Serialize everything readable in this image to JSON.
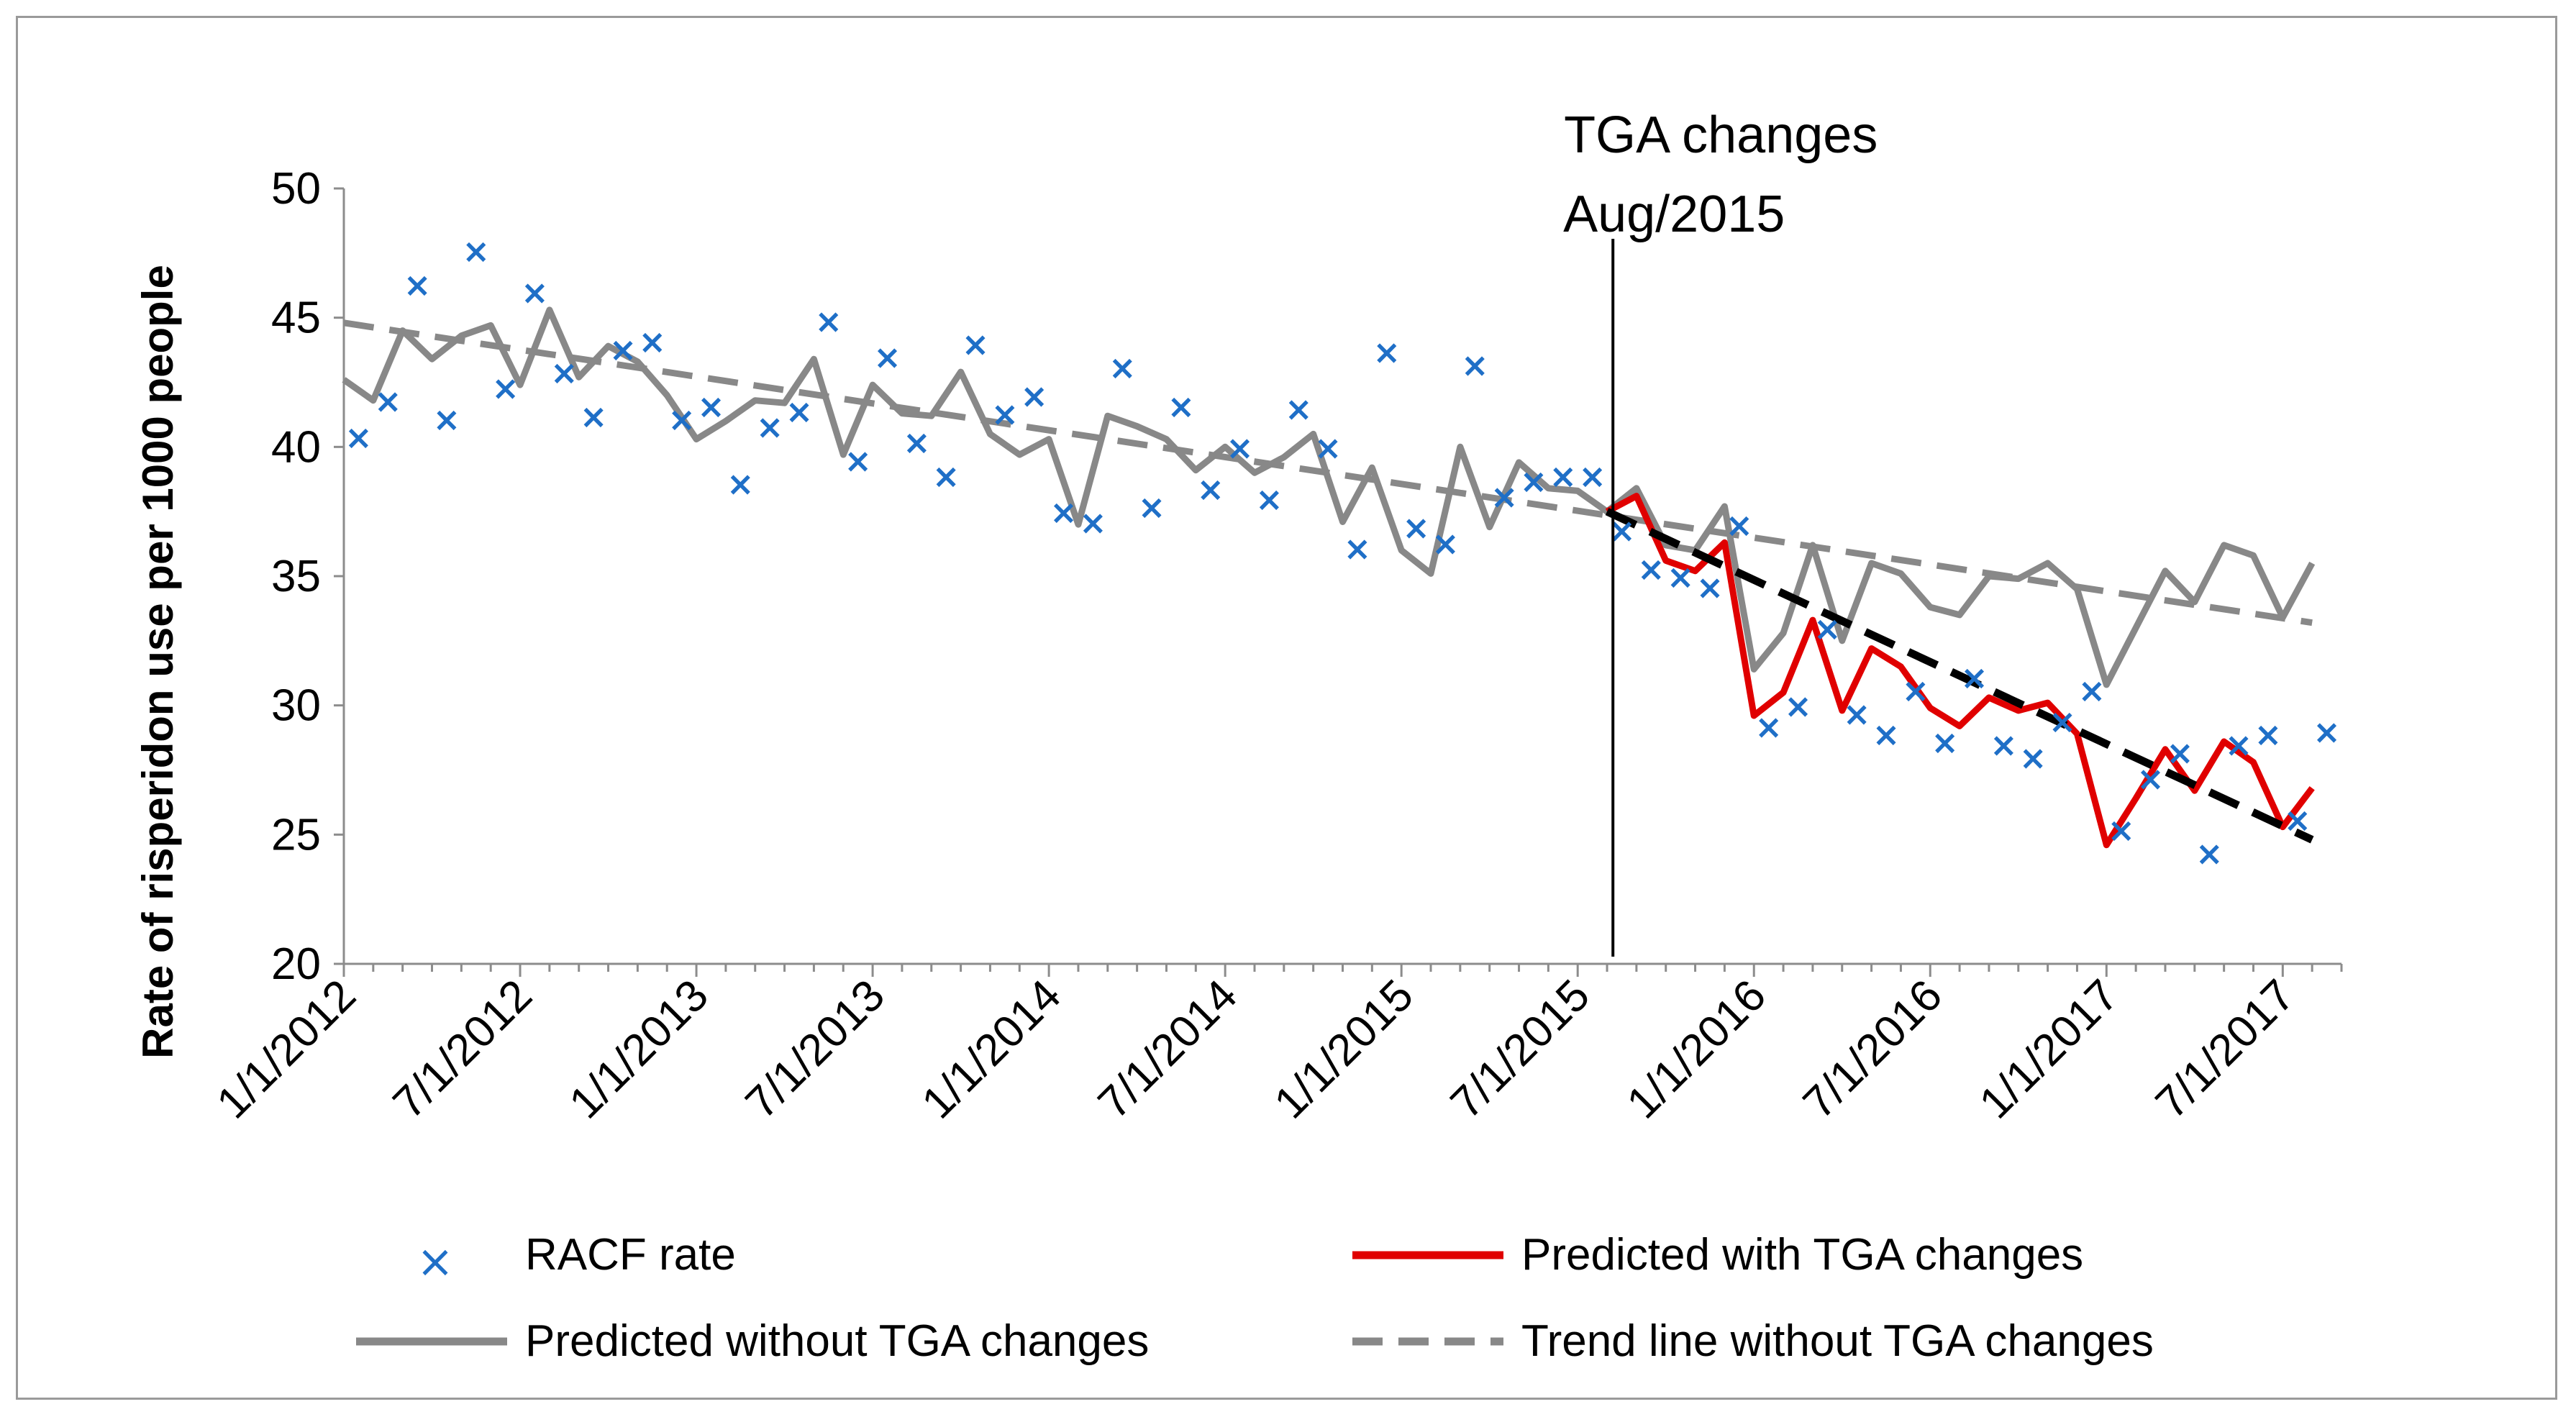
{
  "chart_data": {
    "type": "line",
    "title": "",
    "xlabel": "",
    "ylabel": "Rate of risperidon use per 1000 people",
    "ylim": [
      20,
      50
    ],
    "yticks": [
      "20",
      "25",
      "30",
      "35",
      "40",
      "45",
      "50"
    ],
    "x_tick_labels": [
      "1/1/2012",
      "7/1/2012",
      "1/1/2013",
      "7/1/2013",
      "1/1/2014",
      "7/1/2014",
      "1/1/2015",
      "7/1/2015",
      "1/1/2016",
      "7/1/2016",
      "1/1/2017",
      "7/1/2017"
    ],
    "x_start": "1/1/2012",
    "n_months": 68,
    "annotation": {
      "line1": "TGA changes",
      "line2": "Aug/2015",
      "month_index": 43.2
    },
    "colors": {
      "scatter": "#1f6fc7",
      "predicted_with": "#e00000",
      "predicted_without": "#888888",
      "trend_without": "#888888",
      "trend_with": "#000000"
    },
    "series": [
      {
        "name": "RACF rate",
        "style": "scatter",
        "values": [
          40.4,
          41.8,
          46.3,
          41.1,
          47.6,
          42.3,
          46.0,
          42.9,
          41.2,
          43.8,
          44.1,
          41.1,
          41.6,
          38.6,
          40.8,
          41.4,
          44.9,
          39.5,
          43.5,
          40.2,
          38.9,
          44.0,
          41.3,
          42.0,
          37.5,
          37.1,
          43.1,
          37.7,
          41.6,
          38.4,
          40.0,
          38.0,
          41.5,
          40.0,
          36.1,
          43.7,
          36.9,
          36.3,
          43.2,
          38.1,
          38.7,
          38.9,
          38.9,
          36.8,
          35.3,
          35.0,
          34.6,
          37.0,
          29.2,
          30.0,
          33.0,
          29.7,
          28.9,
          30.6,
          28.6,
          31.1,
          28.5,
          28.0,
          29.4,
          30.6,
          25.2,
          27.2,
          28.2,
          24.3,
          28.5,
          28.9,
          25.6,
          29.0
        ]
      },
      {
        "name": "Predicted without TGA changes",
        "style": "solid",
        "values": [
          42.6,
          41.8,
          44.5,
          43.4,
          44.3,
          44.7,
          42.4,
          45.3,
          42.7,
          43.9,
          43.3,
          42.0,
          40.3,
          41.0,
          41.8,
          41.7,
          43.4,
          39.7,
          42.4,
          41.3,
          41.2,
          42.9,
          40.5,
          39.7,
          40.3,
          37.0,
          41.2,
          40.8,
          40.3,
          39.1,
          40.0,
          39.0,
          39.6,
          40.5,
          37.1,
          39.2,
          36.0,
          35.1,
          40.0,
          36.9,
          39.4,
          38.4,
          38.3,
          37.5,
          38.4,
          36.2,
          36.0,
          37.7,
          31.4,
          32.8,
          36.2,
          32.5,
          35.5,
          35.1,
          33.8,
          33.5,
          35.0,
          34.9,
          35.5,
          34.5,
          30.8,
          33.0,
          35.2,
          34.0,
          36.2,
          35.8,
          33.4,
          35.5
        ]
      },
      {
        "name": "Predicted with TGA changes",
        "style": "solid",
        "start_index": 43,
        "values": [
          37.5,
          38.1,
          35.6,
          35.2,
          36.3,
          29.6,
          30.5,
          33.3,
          29.8,
          32.2,
          31.5,
          29.9,
          29.2,
          30.3,
          29.8,
          30.1,
          28.9,
          24.6,
          26.4,
          28.3,
          26.7,
          28.6,
          27.8,
          25.3,
          26.8
        ]
      },
      {
        "name": "Trend line without TGA changes",
        "style": "dashed",
        "from": [
          0,
          44.8
        ],
        "to": [
          67,
          33.2
        ]
      },
      {
        "name": "Trend line with TGA changes",
        "style": "dashed",
        "from": [
          43,
          37.5
        ],
        "to": [
          67,
          24.8
        ]
      }
    ],
    "legend": [
      {
        "label": "RACF rate",
        "kind": "scatter"
      },
      {
        "label": "Predicted with TGA changes",
        "kind": "red-line"
      },
      {
        "label": "Predicted without TGA changes",
        "kind": "gray-line"
      },
      {
        "label": "Trend line without TGA changes",
        "kind": "gray-dash"
      }
    ]
  }
}
